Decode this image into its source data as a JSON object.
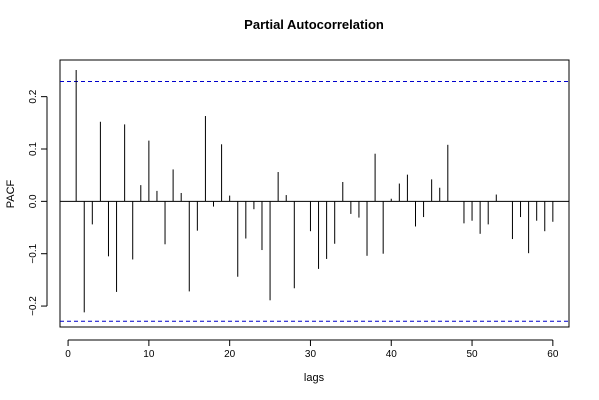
{
  "chart_data": {
    "type": "bar",
    "title": "Partial Autocorrelation",
    "xlabel": "lags",
    "ylabel": "PACF",
    "xlim": [
      -1,
      62
    ],
    "ylim": [
      -0.24,
      0.27
    ],
    "x_ticks": [
      0,
      10,
      20,
      30,
      40,
      50,
      60
    ],
    "y_ticks": [
      -0.2,
      -0.1,
      0.0,
      0.1,
      0.2
    ],
    "y_tick_labels": [
      "−0.2",
      "−0.1",
      "0.0",
      "0.1",
      "0.2"
    ],
    "confidence_bound": 0.229,
    "grid": false,
    "bar_color": "#000000",
    "bound_color": "#0000cc",
    "lags": [
      1,
      2,
      3,
      4,
      5,
      6,
      7,
      8,
      9,
      10,
      11,
      12,
      13,
      14,
      15,
      16,
      17,
      18,
      19,
      20,
      21,
      22,
      23,
      24,
      25,
      26,
      27,
      28,
      29,
      30,
      31,
      32,
      33,
      34,
      35,
      36,
      37,
      38,
      39,
      40,
      41,
      42,
      43,
      44,
      45,
      46,
      47,
      48,
      49,
      50,
      51,
      52,
      53,
      54,
      55,
      56,
      57,
      58,
      59,
      60
    ],
    "values": [
      0.251,
      -0.212,
      -0.044,
      0.152,
      -0.105,
      -0.173,
      0.147,
      -0.111,
      0.031,
      0.116,
      0.02,
      -0.082,
      0.061,
      0.016,
      -0.172,
      -0.056,
      0.163,
      -0.01,
      0.109,
      0.011,
      -0.144,
      -0.071,
      -0.015,
      -0.093,
      -0.189,
      0.056,
      0.012,
      -0.166,
      0.0,
      -0.057,
      -0.129,
      -0.11,
      -0.081,
      0.037,
      -0.024,
      -0.031,
      -0.104,
      0.091,
      -0.1,
      0.005,
      0.034,
      0.051,
      -0.048,
      -0.03,
      0.042,
      0.026,
      0.108,
      0.0,
      -0.042,
      -0.037,
      -0.062,
      -0.044,
      0.013,
      0.0,
      -0.072,
      -0.03,
      -0.099,
      -0.037,
      -0.057,
      -0.039
    ]
  }
}
